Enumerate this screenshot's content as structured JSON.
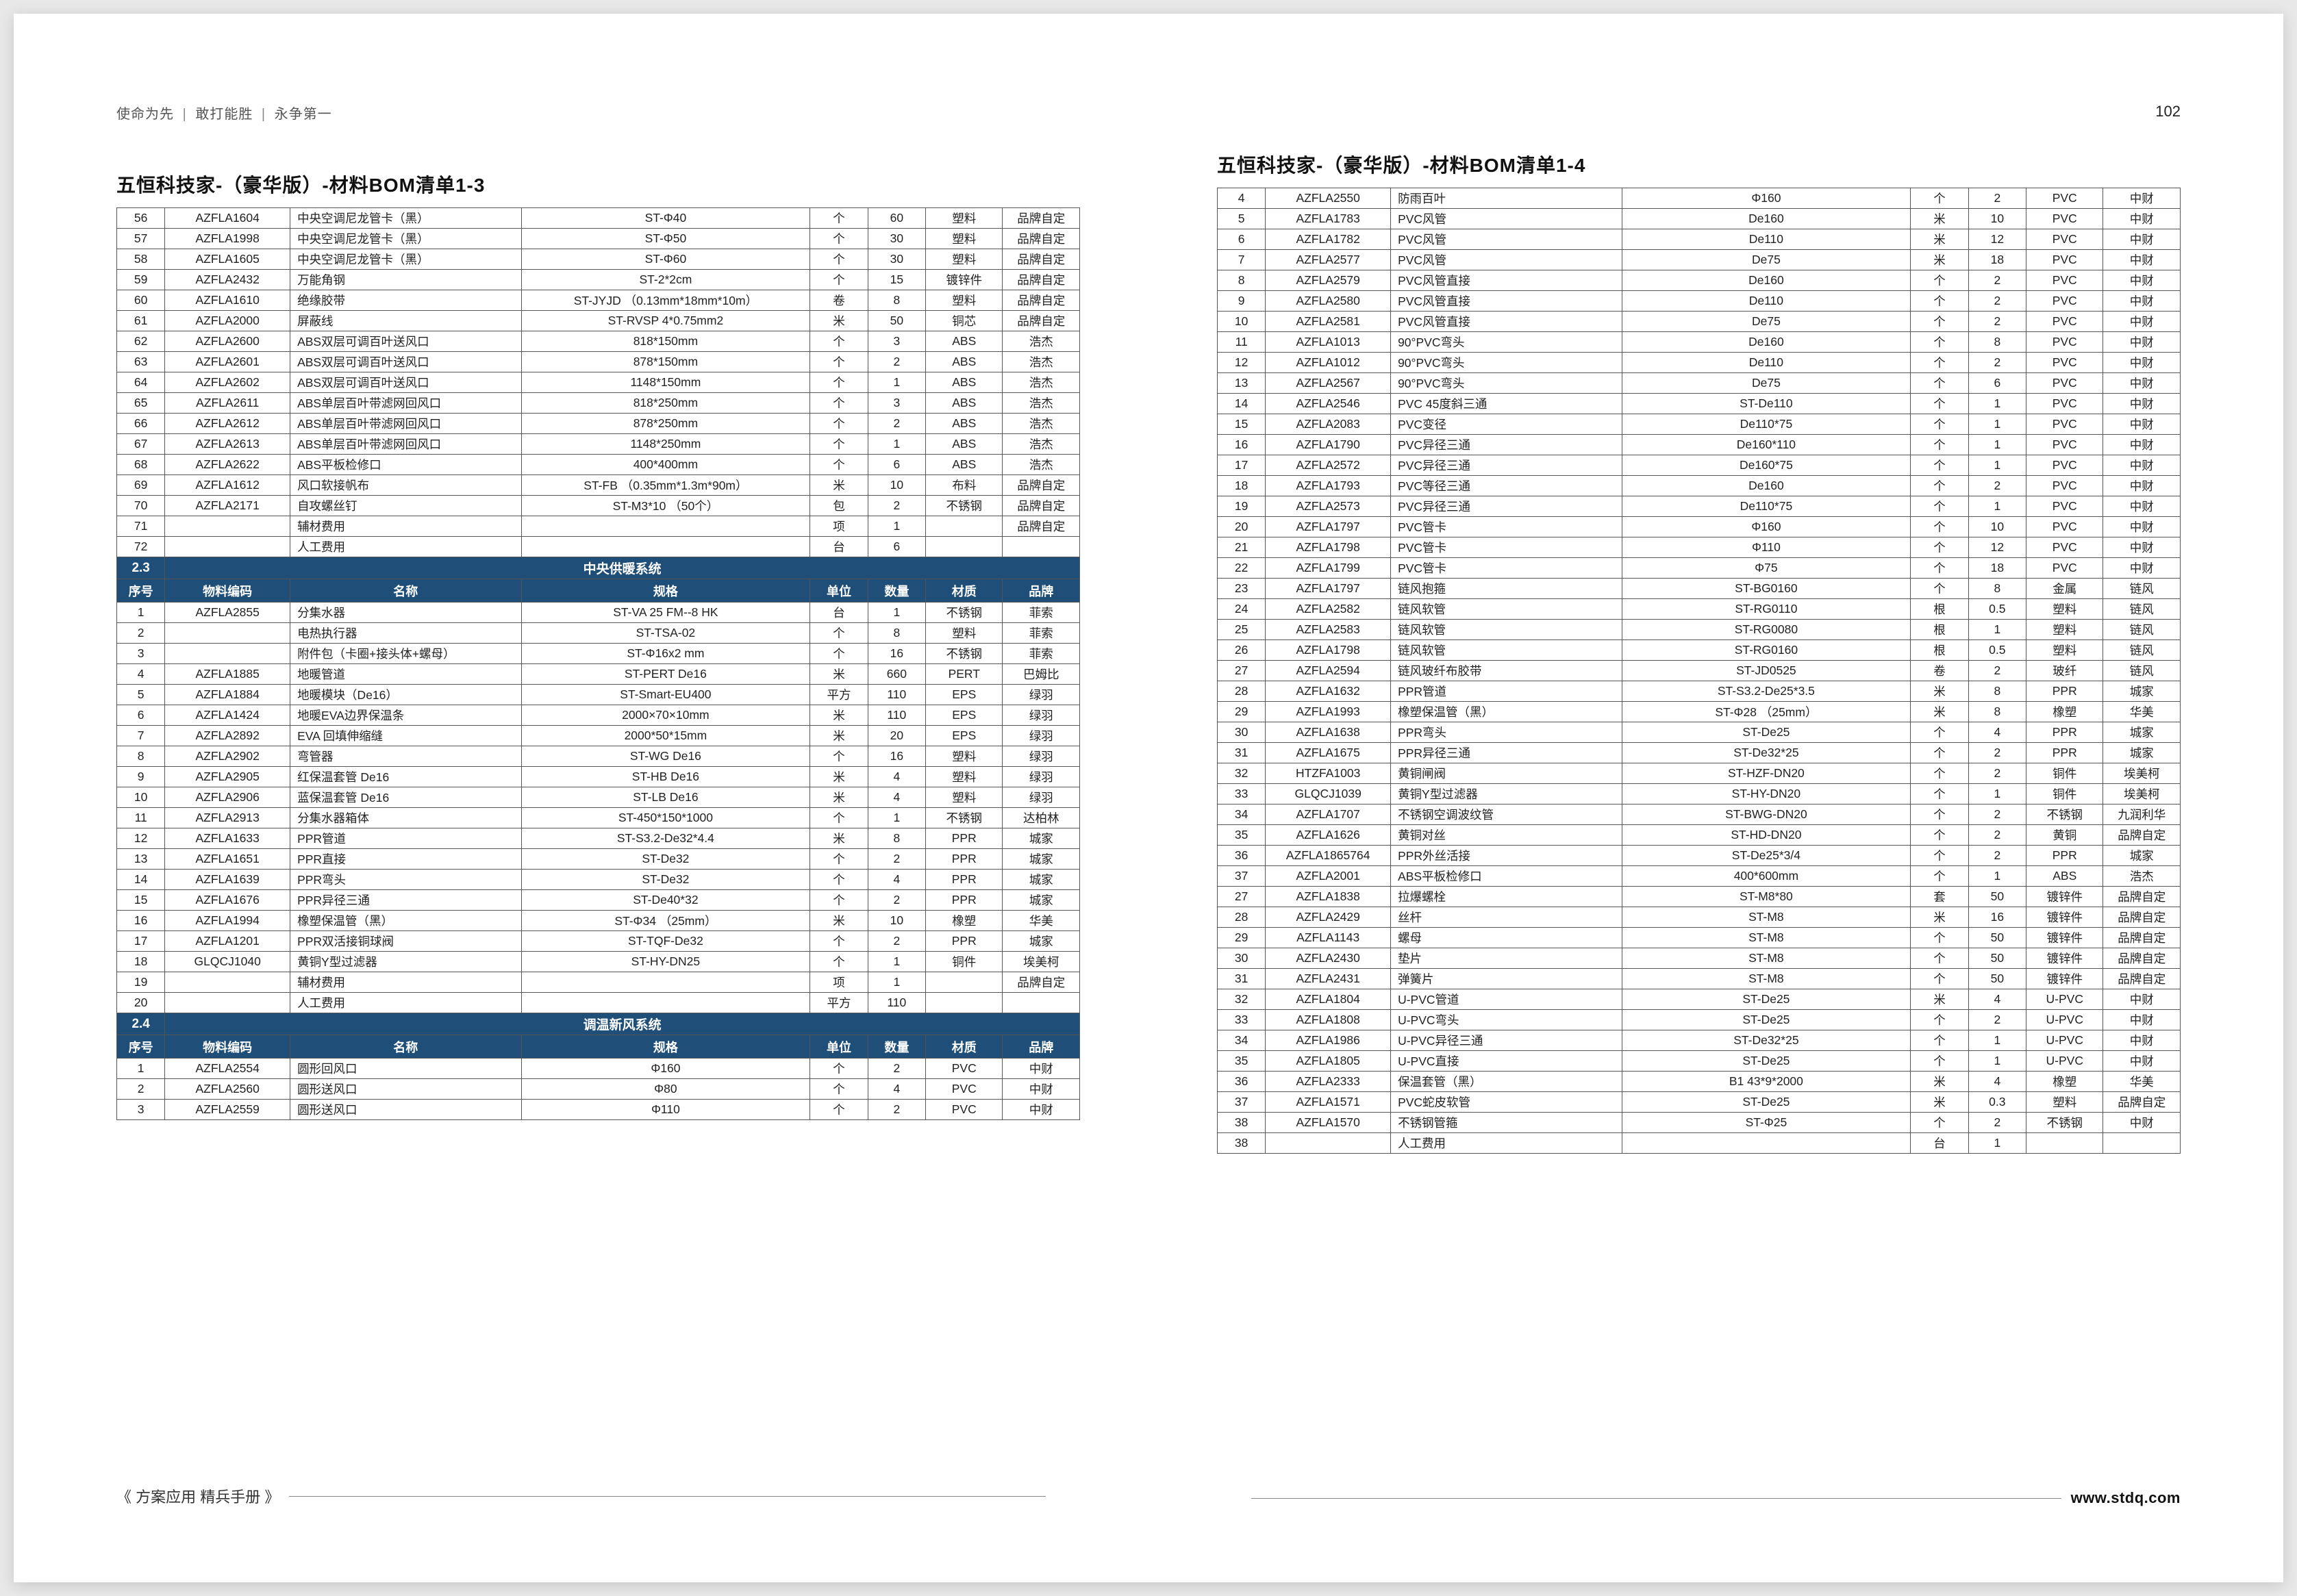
{
  "page_number": "102",
  "breadcrumb": [
    "使命为先",
    "敢打能胜",
    "永争第一"
  ],
  "footer_left": "《 方案应用 精兵手册 》",
  "footer_right": "www.stdq.com",
  "left_title": "五恒科技家-（豪华版）-材料BOM清单1-3",
  "right_title": "五恒科技家-（豪华版）-材料BOM清单1-4",
  "columns": [
    "序号",
    "物料编码",
    "名称",
    "规格",
    "单位",
    "数量",
    "材质",
    "品牌"
  ],
  "left_rows": [
    {
      "n": "56",
      "code": "AZFLA1604",
      "name": "中央空调尼龙管卡（黑）",
      "spec": "ST-Φ40",
      "unit": "个",
      "qty": "60",
      "mat": "塑料",
      "brand": "品牌自定"
    },
    {
      "n": "57",
      "code": "AZFLA1998",
      "name": "中央空调尼龙管卡（黑）",
      "spec": "ST-Φ50",
      "unit": "个",
      "qty": "30",
      "mat": "塑料",
      "brand": "品牌自定"
    },
    {
      "n": "58",
      "code": "AZFLA1605",
      "name": "中央空调尼龙管卡（黑）",
      "spec": "ST-Φ60",
      "unit": "个",
      "qty": "30",
      "mat": "塑料",
      "brand": "品牌自定"
    },
    {
      "n": "59",
      "code": "AZFLA2432",
      "name": "万能角钢",
      "spec": "ST-2*2cm",
      "unit": "个",
      "qty": "15",
      "mat": "镀锌件",
      "brand": "品牌自定"
    },
    {
      "n": "60",
      "code": "AZFLA1610",
      "name": "绝缘胶带",
      "spec": "ST-JYJD （0.13mm*18mm*10m）",
      "unit": "卷",
      "qty": "8",
      "mat": "塑料",
      "brand": "品牌自定"
    },
    {
      "n": "61",
      "code": "AZFLA2000",
      "name": "屏蔽线",
      "spec": "ST-RVSP 4*0.75mm2",
      "unit": "米",
      "qty": "50",
      "mat": "铜芯",
      "brand": "品牌自定"
    },
    {
      "n": "62",
      "code": "AZFLA2600",
      "name": "ABS双层可调百叶送风口",
      "spec": "818*150mm",
      "unit": "个",
      "qty": "3",
      "mat": "ABS",
      "brand": "浩杰"
    },
    {
      "n": "63",
      "code": "AZFLA2601",
      "name": "ABS双层可调百叶送风口",
      "spec": "878*150mm",
      "unit": "个",
      "qty": "2",
      "mat": "ABS",
      "brand": "浩杰"
    },
    {
      "n": "64",
      "code": "AZFLA2602",
      "name": "ABS双层可调百叶送风口",
      "spec": "1148*150mm",
      "unit": "个",
      "qty": "1",
      "mat": "ABS",
      "brand": "浩杰"
    },
    {
      "n": "65",
      "code": "AZFLA2611",
      "name": "ABS单层百叶带滤网回风口",
      "spec": "818*250mm",
      "unit": "个",
      "qty": "3",
      "mat": "ABS",
      "brand": "浩杰"
    },
    {
      "n": "66",
      "code": "AZFLA2612",
      "name": "ABS单层百叶带滤网回风口",
      "spec": "878*250mm",
      "unit": "个",
      "qty": "2",
      "mat": "ABS",
      "brand": "浩杰"
    },
    {
      "n": "67",
      "code": "AZFLA2613",
      "name": "ABS单层百叶带滤网回风口",
      "spec": "1148*250mm",
      "unit": "个",
      "qty": "1",
      "mat": "ABS",
      "brand": "浩杰"
    },
    {
      "n": "68",
      "code": "AZFLA2622",
      "name": "ABS平板检修口",
      "spec": "400*400mm",
      "unit": "个",
      "qty": "6",
      "mat": "ABS",
      "brand": "浩杰"
    },
    {
      "n": "69",
      "code": "AZFLA1612",
      "name": "风口软接帆布",
      "spec": "ST-FB （0.35mm*1.3m*90m）",
      "unit": "米",
      "qty": "10",
      "mat": "布料",
      "brand": "品牌自定"
    },
    {
      "n": "70",
      "code": "AZFLA2171",
      "name": "自攻螺丝钉",
      "spec": "ST-M3*10 （50个）",
      "unit": "包",
      "qty": "2",
      "mat": "不锈钢",
      "brand": "品牌自定"
    },
    {
      "n": "71",
      "code": "",
      "name": "辅材费用",
      "spec": "",
      "unit": "项",
      "qty": "1",
      "mat": "",
      "brand": "品牌自定"
    },
    {
      "n": "72",
      "code": "",
      "name": "人工费用",
      "spec": "",
      "unit": "台",
      "qty": "6",
      "mat": "",
      "brand": ""
    }
  ],
  "left_sections": [
    {
      "idx": "2.3",
      "title": "中央供暖系统",
      "header": true,
      "rows": [
        {
          "n": "1",
          "code": "AZFLA2855",
          "name": "分集水器",
          "spec": "ST-VA 25 FM--8 HK",
          "unit": "台",
          "qty": "1",
          "mat": "不锈钢",
          "brand": "菲索"
        },
        {
          "n": "2",
          "code": "",
          "name": "电热执行器",
          "spec": "ST-TSA-02",
          "unit": "个",
          "qty": "8",
          "mat": "塑料",
          "brand": "菲索"
        },
        {
          "n": "3",
          "code": "",
          "name": "附件包（卡圈+接头体+螺母）",
          "spec": "ST-Φ16x2 mm",
          "unit": "个",
          "qty": "16",
          "mat": "不锈钢",
          "brand": "菲索"
        },
        {
          "n": "4",
          "code": "AZFLA1885",
          "name": "地暖管道",
          "spec": "ST-PERT De16",
          "unit": "米",
          "qty": "660",
          "mat": "PERT",
          "brand": "巴姆比"
        },
        {
          "n": "5",
          "code": "AZFLA1884",
          "name": "地暖模块（De16）",
          "spec": "ST-Smart-EU400",
          "unit": "平方",
          "qty": "110",
          "mat": "EPS",
          "brand": "绿羽"
        },
        {
          "n": "6",
          "code": "AZFLA1424",
          "name": "地暖EVA边界保温条",
          "spec": "2000×70×10mm",
          "unit": "米",
          "qty": "110",
          "mat": "EPS",
          "brand": "绿羽"
        },
        {
          "n": "7",
          "code": "AZFLA2892",
          "name": "EVA 回填伸缩缝",
          "spec": "2000*50*15mm",
          "unit": "米",
          "qty": "20",
          "mat": "EPS",
          "brand": "绿羽"
        },
        {
          "n": "8",
          "code": "AZFLA2902",
          "name": "弯管器",
          "spec": "ST-WG De16",
          "unit": "个",
          "qty": "16",
          "mat": "塑料",
          "brand": "绿羽"
        },
        {
          "n": "9",
          "code": "AZFLA2905",
          "name": "红保温套管 De16",
          "spec": "ST-HB De16",
          "unit": "米",
          "qty": "4",
          "mat": "塑料",
          "brand": "绿羽"
        },
        {
          "n": "10",
          "code": "AZFLA2906",
          "name": "蓝保温套管 De16",
          "spec": "ST-LB De16",
          "unit": "米",
          "qty": "4",
          "mat": "塑料",
          "brand": "绿羽"
        },
        {
          "n": "11",
          "code": "AZFLA2913",
          "name": "分集水器箱体",
          "spec": "ST-450*150*1000",
          "unit": "个",
          "qty": "1",
          "mat": "不锈钢",
          "brand": "达柏林"
        },
        {
          "n": "12",
          "code": "AZFLA1633",
          "name": "PPR管道",
          "spec": "ST-S3.2-De32*4.4",
          "unit": "米",
          "qty": "8",
          "mat": "PPR",
          "brand": "城家"
        },
        {
          "n": "13",
          "code": "AZFLA1651",
          "name": "PPR直接",
          "spec": "ST-De32",
          "unit": "个",
          "qty": "2",
          "mat": "PPR",
          "brand": "城家"
        },
        {
          "n": "14",
          "code": "AZFLA1639",
          "name": "PPR弯头",
          "spec": "ST-De32",
          "unit": "个",
          "qty": "4",
          "mat": "PPR",
          "brand": "城家"
        },
        {
          "n": "15",
          "code": "AZFLA1676",
          "name": "PPR异径三通",
          "spec": "ST-De40*32",
          "unit": "个",
          "qty": "2",
          "mat": "PPR",
          "brand": "城家"
        },
        {
          "n": "16",
          "code": "AZFLA1994",
          "name": "橡塑保温管（黑）",
          "spec": "ST-Φ34 （25mm）",
          "unit": "米",
          "qty": "10",
          "mat": "橡塑",
          "brand": "华美"
        },
        {
          "n": "17",
          "code": "AZFLA1201",
          "name": "PPR双活接铜球阀",
          "spec": "ST-TQF-De32",
          "unit": "个",
          "qty": "2",
          "mat": "PPR",
          "brand": "城家"
        },
        {
          "n": "18",
          "code": "GLQCJ1040",
          "name": "黄铜Y型过滤器",
          "spec": "ST-HY-DN25",
          "unit": "个",
          "qty": "1",
          "mat": "铜件",
          "brand": "埃美柯"
        },
        {
          "n": "19",
          "code": "",
          "name": "辅材费用",
          "spec": "",
          "unit": "项",
          "qty": "1",
          "mat": "",
          "brand": "品牌自定"
        },
        {
          "n": "20",
          "code": "",
          "name": "人工费用",
          "spec": "",
          "unit": "平方",
          "qty": "110",
          "mat": "",
          "brand": ""
        }
      ]
    },
    {
      "idx": "2.4",
      "title": "调温新风系统",
      "header": true,
      "rows": [
        {
          "n": "1",
          "code": "AZFLA2554",
          "name": "圆形回风口",
          "spec": "Φ160",
          "unit": "个",
          "qty": "2",
          "mat": "PVC",
          "brand": "中财"
        },
        {
          "n": "2",
          "code": "AZFLA2560",
          "name": "圆形送风口",
          "spec": "Φ80",
          "unit": "个",
          "qty": "4",
          "mat": "PVC",
          "brand": "中财"
        },
        {
          "n": "3",
          "code": "AZFLA2559",
          "name": "圆形送风口",
          "spec": "Φ110",
          "unit": "个",
          "qty": "2",
          "mat": "PVC",
          "brand": "中财"
        }
      ]
    }
  ],
  "right_rows": [
    {
      "n": "4",
      "code": "AZFLA2550",
      "name": "防雨百叶",
      "spec": "Φ160",
      "unit": "个",
      "qty": "2",
      "mat": "PVC",
      "brand": "中财"
    },
    {
      "n": "5",
      "code": "AZFLA1783",
      "name": "PVC风管",
      "spec": "De160",
      "unit": "米",
      "qty": "10",
      "mat": "PVC",
      "brand": "中财"
    },
    {
      "n": "6",
      "code": "AZFLA1782",
      "name": "PVC风管",
      "spec": "De110",
      "unit": "米",
      "qty": "12",
      "mat": "PVC",
      "brand": "中财"
    },
    {
      "n": "7",
      "code": "AZFLA2577",
      "name": "PVC风管",
      "spec": "De75",
      "unit": "米",
      "qty": "18",
      "mat": "PVC",
      "brand": "中财"
    },
    {
      "n": "8",
      "code": "AZFLA2579",
      "name": "PVC风管直接",
      "spec": "De160",
      "unit": "个",
      "qty": "2",
      "mat": "PVC",
      "brand": "中财"
    },
    {
      "n": "9",
      "code": "AZFLA2580",
      "name": "PVC风管直接",
      "spec": "De110",
      "unit": "个",
      "qty": "2",
      "mat": "PVC",
      "brand": "中财"
    },
    {
      "n": "10",
      "code": "AZFLA2581",
      "name": "PVC风管直接",
      "spec": "De75",
      "unit": "个",
      "qty": "2",
      "mat": "PVC",
      "brand": "中财"
    },
    {
      "n": "11",
      "code": "AZFLA1013",
      "name": "90°PVC弯头",
      "spec": "De160",
      "unit": "个",
      "qty": "8",
      "mat": "PVC",
      "brand": "中财"
    },
    {
      "n": "12",
      "code": "AZFLA1012",
      "name": "90°PVC弯头",
      "spec": "De110",
      "unit": "个",
      "qty": "2",
      "mat": "PVC",
      "brand": "中财"
    },
    {
      "n": "13",
      "code": "AZFLA2567",
      "name": "90°PVC弯头",
      "spec": "De75",
      "unit": "个",
      "qty": "6",
      "mat": "PVC",
      "brand": "中财"
    },
    {
      "n": "14",
      "code": "AZFLA2546",
      "name": "PVC 45度斜三通",
      "spec": "ST-De110",
      "unit": "个",
      "qty": "1",
      "mat": "PVC",
      "brand": "中财"
    },
    {
      "n": "15",
      "code": "AZFLA2083",
      "name": "PVC变径",
      "spec": "De110*75",
      "unit": "个",
      "qty": "1",
      "mat": "PVC",
      "brand": "中财"
    },
    {
      "n": "16",
      "code": "AZFLA1790",
      "name": "PVC异径三通",
      "spec": "De160*110",
      "unit": "个",
      "qty": "1",
      "mat": "PVC",
      "brand": "中财"
    },
    {
      "n": "17",
      "code": "AZFLA2572",
      "name": "PVC异径三通",
      "spec": "De160*75",
      "unit": "个",
      "qty": "1",
      "mat": "PVC",
      "brand": "中财"
    },
    {
      "n": "18",
      "code": "AZFLA1793",
      "name": "PVC等径三通",
      "spec": "De160",
      "unit": "个",
      "qty": "2",
      "mat": "PVC",
      "brand": "中财"
    },
    {
      "n": "19",
      "code": "AZFLA2573",
      "name": "PVC异径三通",
      "spec": "De110*75",
      "unit": "个",
      "qty": "1",
      "mat": "PVC",
      "brand": "中财"
    },
    {
      "n": "20",
      "code": "AZFLA1797",
      "name": "PVC管卡",
      "spec": "Φ160",
      "unit": "个",
      "qty": "10",
      "mat": "PVC",
      "brand": "中财"
    },
    {
      "n": "21",
      "code": "AZFLA1798",
      "name": "PVC管卡",
      "spec": "Φ110",
      "unit": "个",
      "qty": "12",
      "mat": "PVC",
      "brand": "中财"
    },
    {
      "n": "22",
      "code": "AZFLA1799",
      "name": "PVC管卡",
      "spec": "Φ75",
      "unit": "个",
      "qty": "18",
      "mat": "PVC",
      "brand": "中财"
    },
    {
      "n": "23",
      "code": "AZFLA1797",
      "name": "链风抱箍",
      "spec": "ST-BG0160",
      "unit": "个",
      "qty": "8",
      "mat": "金属",
      "brand": "链风"
    },
    {
      "n": "24",
      "code": "AZFLA2582",
      "name": "链风软管",
      "spec": "ST-RG0110",
      "unit": "根",
      "qty": "0.5",
      "mat": "塑料",
      "brand": "链风"
    },
    {
      "n": "25",
      "code": "AZFLA2583",
      "name": "链风软管",
      "spec": "ST-RG0080",
      "unit": "根",
      "qty": "1",
      "mat": "塑料",
      "brand": "链风"
    },
    {
      "n": "26",
      "code": "AZFLA1798",
      "name": "链风软管",
      "spec": "ST-RG0160",
      "unit": "根",
      "qty": "0.5",
      "mat": "塑料",
      "brand": "链风"
    },
    {
      "n": "27",
      "code": "AZFLA2594",
      "name": "链风玻纤布胶带",
      "spec": "ST-JD0525",
      "unit": "卷",
      "qty": "2",
      "mat": "玻纤",
      "brand": "链风"
    },
    {
      "n": "28",
      "code": "AZFLA1632",
      "name": "PPR管道",
      "spec": "ST-S3.2-De25*3.5",
      "unit": "米",
      "qty": "8",
      "mat": "PPR",
      "brand": "城家"
    },
    {
      "n": "29",
      "code": "AZFLA1993",
      "name": "橡塑保温管（黑）",
      "spec": "ST-Φ28 （25mm）",
      "unit": "米",
      "qty": "8",
      "mat": "橡塑",
      "brand": "华美"
    },
    {
      "n": "30",
      "code": "AZFLA1638",
      "name": "PPR弯头",
      "spec": "ST-De25",
      "unit": "个",
      "qty": "4",
      "mat": "PPR",
      "brand": "城家"
    },
    {
      "n": "31",
      "code": "AZFLA1675",
      "name": "PPR异径三通",
      "spec": "ST-De32*25",
      "unit": "个",
      "qty": "2",
      "mat": "PPR",
      "brand": "城家"
    },
    {
      "n": "32",
      "code": "HTZFA1003",
      "name": "黄铜闸阀",
      "spec": "ST-HZF-DN20",
      "unit": "个",
      "qty": "2",
      "mat": "铜件",
      "brand": "埃美柯"
    },
    {
      "n": "33",
      "code": "GLQCJ1039",
      "name": "黄铜Y型过滤器",
      "spec": "ST-HY-DN20",
      "unit": "个",
      "qty": "1",
      "mat": "铜件",
      "brand": "埃美柯"
    },
    {
      "n": "34",
      "code": "AZFLA1707",
      "name": "不锈钢空调波纹管",
      "spec": "ST-BWG-DN20",
      "unit": "个",
      "qty": "2",
      "mat": "不锈钢",
      "brand": "九润利华"
    },
    {
      "n": "35",
      "code": "AZFLA1626",
      "name": "黄铜对丝",
      "spec": "ST-HD-DN20",
      "unit": "个",
      "qty": "2",
      "mat": "黄铜",
      "brand": "品牌自定"
    },
    {
      "n": "36",
      "code": "AZFLA1865764",
      "name": "PPR外丝活接",
      "spec": "ST-De25*3/4",
      "unit": "个",
      "qty": "2",
      "mat": "PPR",
      "brand": "城家"
    },
    {
      "n": "37",
      "code": "AZFLA2001",
      "name": "ABS平板检修口",
      "spec": "400*600mm",
      "unit": "个",
      "qty": "1",
      "mat": "ABS",
      "brand": "浩杰"
    },
    {
      "n": "27",
      "code": "AZFLA1838",
      "name": "拉爆螺栓",
      "spec": "ST-M8*80",
      "unit": "套",
      "qty": "50",
      "mat": "镀锌件",
      "brand": "品牌自定"
    },
    {
      "n": "28",
      "code": "AZFLA2429",
      "name": "丝杆",
      "spec": "ST-M8",
      "unit": "米",
      "qty": "16",
      "mat": "镀锌件",
      "brand": "品牌自定"
    },
    {
      "n": "29",
      "code": "AZFLA1143",
      "name": "螺母",
      "spec": "ST-M8",
      "unit": "个",
      "qty": "50",
      "mat": "镀锌件",
      "brand": "品牌自定"
    },
    {
      "n": "30",
      "code": "AZFLA2430",
      "name": "垫片",
      "spec": "ST-M8",
      "unit": "个",
      "qty": "50",
      "mat": "镀锌件",
      "brand": "品牌自定"
    },
    {
      "n": "31",
      "code": "AZFLA2431",
      "name": "弹簧片",
      "spec": "ST-M8",
      "unit": "个",
      "qty": "50",
      "mat": "镀锌件",
      "brand": "品牌自定"
    },
    {
      "n": "32",
      "code": "AZFLA1804",
      "name": "U-PVC管道",
      "spec": "ST-De25",
      "unit": "米",
      "qty": "4",
      "mat": "U-PVC",
      "brand": "中财"
    },
    {
      "n": "33",
      "code": "AZFLA1808",
      "name": "U-PVC弯头",
      "spec": "ST-De25",
      "unit": "个",
      "qty": "2",
      "mat": "U-PVC",
      "brand": "中财"
    },
    {
      "n": "34",
      "code": "AZFLA1986",
      "name": "U-PVC异径三通",
      "spec": "ST-De32*25",
      "unit": "个",
      "qty": "1",
      "mat": "U-PVC",
      "brand": "中财"
    },
    {
      "n": "35",
      "code": "AZFLA1805",
      "name": "U-PVC直接",
      "spec": "ST-De25",
      "unit": "个",
      "qty": "1",
      "mat": "U-PVC",
      "brand": "中财"
    },
    {
      "n": "36",
      "code": "AZFLA2333",
      "name": "保温套管（黑）",
      "spec": "B1 43*9*2000",
      "unit": "米",
      "qty": "4",
      "mat": "橡塑",
      "brand": "华美"
    },
    {
      "n": "37",
      "code": "AZFLA1571",
      "name": "PVC蛇皮软管",
      "spec": "ST-De25",
      "unit": "米",
      "qty": "0.3",
      "mat": "塑料",
      "brand": "品牌自定"
    },
    {
      "n": "38",
      "code": "AZFLA1570",
      "name": "不锈钢管箍",
      "spec": "ST-Φ25",
      "unit": "个",
      "qty": "2",
      "mat": "不锈钢",
      "brand": "中财"
    },
    {
      "n": "38",
      "code": "",
      "name": "人工费用",
      "spec": "",
      "unit": "台",
      "qty": "1",
      "mat": "",
      "brand": ""
    }
  ],
  "colors": {
    "header_bg": "#1f4e79",
    "header_fg": "#ffffff",
    "border": "#555555",
    "page_bg": "#ffffff",
    "outer_bg": "#e8e8e8"
  }
}
